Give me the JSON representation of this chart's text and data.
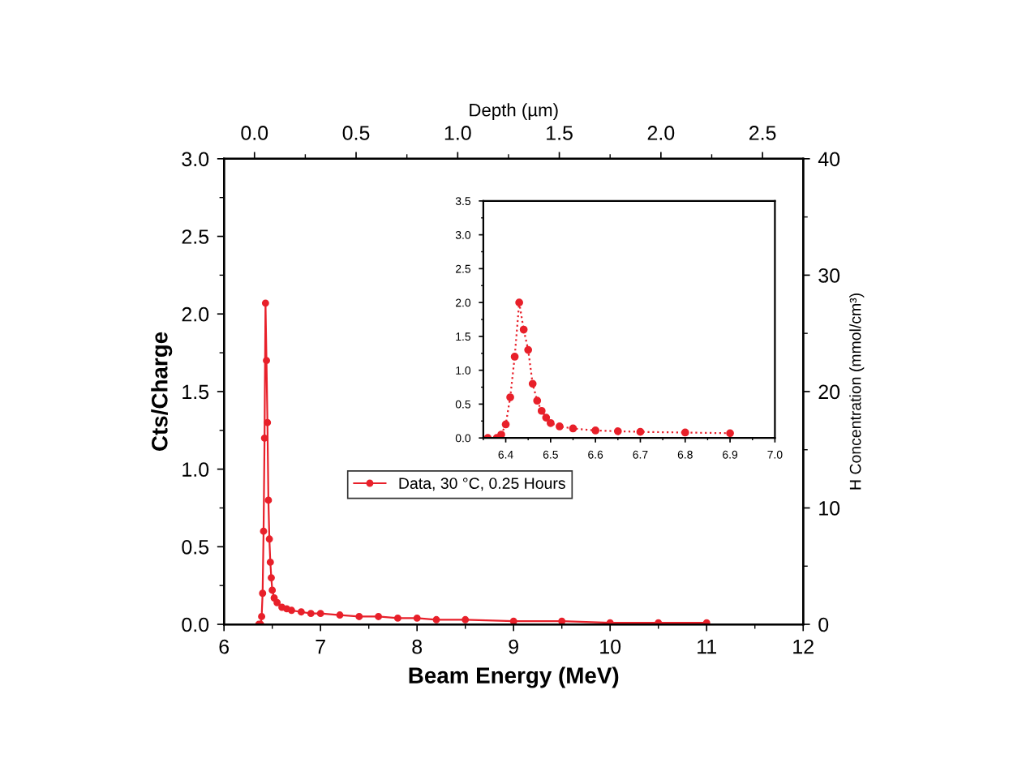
{
  "chart_data": [
    {
      "type": "line",
      "xlabel": "Beam Energy (MeV)",
      "ylabel": "Cts/Charge",
      "x2label": "Depth (µm)",
      "y2label": "H Concentration (mmol/cm³)",
      "xlim": [
        6,
        12
      ],
      "xticks": [
        6,
        7,
        8,
        9,
        10,
        11,
        12
      ],
      "ylim": [
        0,
        3
      ],
      "yticks": [
        {
          "value": 0,
          "label": "0.0"
        },
        0.5,
        {
          "value": 1,
          "label": "1.0"
        },
        1.5,
        {
          "value": 2,
          "label": "2.0"
        },
        2.5,
        {
          "value": 3,
          "label": "3.0"
        }
      ],
      "x2lim": [
        -0.15,
        2.7
      ],
      "x2ticks": [
        {
          "value": 0,
          "label": "0.0"
        },
        0.5,
        {
          "value": 1,
          "label": "1.0"
        },
        1.5,
        {
          "value": 2,
          "label": "2.0"
        },
        2.5
      ],
      "y2lim": [
        0,
        40
      ],
      "y2ticks": [
        0,
        10,
        20,
        30,
        40
      ],
      "legend": "center left",
      "marker": "circle",
      "line_style": "solid",
      "grid": false,
      "series": [
        {
          "name": "Data, 30 °C, 0.25 Hours",
          "color": "#e8202a",
          "x": [
            6.36,
            6.38,
            6.39,
            6.4,
            6.41,
            6.42,
            6.43,
            6.44,
            6.45,
            6.46,
            6.47,
            6.48,
            6.49,
            6.5,
            6.52,
            6.55,
            6.6,
            6.65,
            6.7,
            6.8,
            6.9,
            7.0,
            7.2,
            7.4,
            7.6,
            7.8,
            8.0,
            8.2,
            8.5,
            9.0,
            9.5,
            10.0,
            10.5,
            11.0
          ],
          "values": [
            0.0,
            0.0,
            0.05,
            0.2,
            0.6,
            1.2,
            2.07,
            1.7,
            1.3,
            0.8,
            0.55,
            0.4,
            0.3,
            0.22,
            0.17,
            0.14,
            0.11,
            0.1,
            0.09,
            0.08,
            0.07,
            0.07,
            0.06,
            0.05,
            0.05,
            0.04,
            0.04,
            0.03,
            0.03,
            0.02,
            0.02,
            0.01,
            0.01,
            0.01
          ]
        }
      ]
    },
    {
      "type": "line",
      "xlim": [
        6.35,
        7.0
      ],
      "xticks": [
        6.4,
        6.5,
        6.6,
        6.7,
        6.8,
        6.9,
        {
          "value": 7,
          "label": "7.0"
        }
      ],
      "ylim": [
        0,
        3.5
      ],
      "yticks": [
        {
          "value": 0,
          "label": "0.0"
        },
        0.5,
        {
          "value": 1,
          "label": "1.0"
        },
        1.5,
        {
          "value": 2,
          "label": "2.0"
        },
        2.5,
        {
          "value": 3,
          "label": "3.0"
        },
        3.5
      ],
      "marker": "circle",
      "line_style": "dotted",
      "grid": false,
      "series": [
        {
          "color": "#e8202a",
          "x": [
            6.36,
            6.38,
            6.39,
            6.4,
            6.41,
            6.42,
            6.43,
            6.44,
            6.45,
            6.46,
            6.47,
            6.48,
            6.49,
            6.5,
            6.52,
            6.55,
            6.6,
            6.65,
            6.7,
            6.8,
            6.9
          ],
          "values": [
            0.0,
            0.0,
            0.05,
            0.2,
            0.6,
            1.2,
            2.0,
            1.6,
            1.3,
            0.8,
            0.55,
            0.4,
            0.3,
            0.22,
            0.17,
            0.14,
            0.11,
            0.1,
            0.09,
            0.08,
            0.07
          ]
        }
      ]
    }
  ]
}
